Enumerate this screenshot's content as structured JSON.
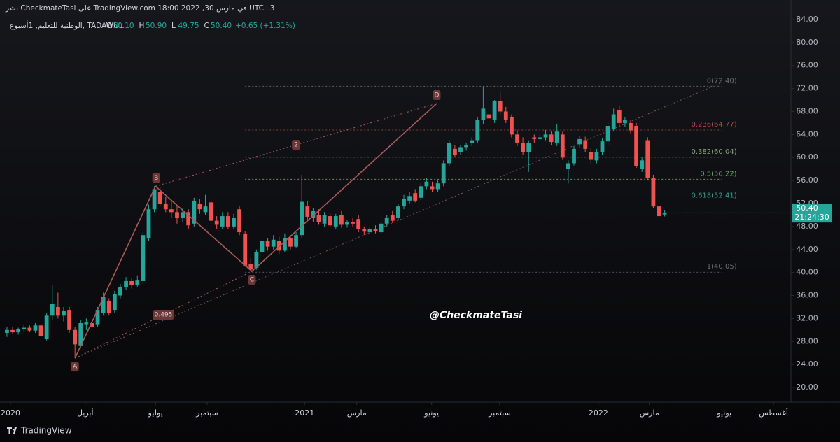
{
  "header": {
    "published": "نشر CheckmateTasi على TradingView.com في مارس 30, 2022 18:00 UTC+3",
    "symbol": "الوطنية للتعليم, 1أسبوع, TADAWUL",
    "ohlc": [
      {
        "key": "O",
        "text": "50.10"
      },
      {
        "key": "H",
        "text": "50.90"
      },
      {
        "key": "L",
        "text": "49.75"
      },
      {
        "key": "C",
        "text": "50.40"
      }
    ],
    "change": "+0.65 (+1.31%)"
  },
  "chart_data": {
    "type": "candlestick",
    "up_color": "#26a69a",
    "down_color": "#ef5350",
    "xlim": [
      -1.23,
      138.27
    ],
    "ylim": [
      17.45,
      87.4
    ],
    "xticks": [
      {
        "value": 0.62,
        "label": "2020"
      },
      {
        "value": 13.8,
        "label": "أبريل"
      },
      {
        "value": 26.2,
        "label": "يوليو"
      },
      {
        "value": 35.3,
        "label": "سبتمبر"
      },
      {
        "value": 52.5,
        "label": "2021"
      },
      {
        "value": 61.7,
        "label": "مارس"
      },
      {
        "value": 74.9,
        "label": "يونيو"
      },
      {
        "value": 86.9,
        "label": "سبتمبر"
      },
      {
        "value": 104.3,
        "label": "2022"
      },
      {
        "value": 113.3,
        "label": "مارس"
      },
      {
        "value": 126.5,
        "label": "يونيو"
      },
      {
        "value": 135.2,
        "label": "أغسطس"
      }
    ],
    "yticks": [
      {
        "value": 20,
        "label": "20.00"
      },
      {
        "value": 24,
        "label": "24.00"
      },
      {
        "value": 28,
        "label": "28.00"
      },
      {
        "value": 32,
        "label": "32.00"
      },
      {
        "value": 36,
        "label": "36.00"
      },
      {
        "value": 40,
        "label": "40.00"
      },
      {
        "value": 44,
        "label": "44.00"
      },
      {
        "value": 48,
        "label": "48.00"
      },
      {
        "value": 52,
        "label": "52.00"
      },
      {
        "value": 56,
        "label": "56.00"
      },
      {
        "value": 60,
        "label": "60.00"
      },
      {
        "value": 64,
        "label": "64.00"
      },
      {
        "value": 68,
        "label": "68.00"
      },
      {
        "value": 72,
        "label": "72.00"
      },
      {
        "value": 76,
        "label": "76.00"
      },
      {
        "value": 80,
        "label": "80.00"
      },
      {
        "value": 84,
        "label": "84.00"
      }
    ],
    "ohlc": [
      [
        29.5,
        30.5,
        28.8,
        30.0
      ],
      [
        30.0,
        30.6,
        29.4,
        29.6
      ],
      [
        29.6,
        30.4,
        29.2,
        30.2
      ],
      [
        30.2,
        31.0,
        29.8,
        30.4
      ],
      [
        30.4,
        30.8,
        29.6,
        29.9
      ],
      [
        29.9,
        31.2,
        29.5,
        30.8
      ],
      [
        30.8,
        31.0,
        28.6,
        29.0
      ],
      [
        28.4,
        33.0,
        28.2,
        32.5
      ],
      [
        32.5,
        37.8,
        31.8,
        34.5
      ],
      [
        34.0,
        36.5,
        32.0,
        32.5
      ],
      [
        32.5,
        34.0,
        31.5,
        33.3
      ],
      [
        33.5,
        34.0,
        29.5,
        30.0
      ],
      [
        30.0,
        30.5,
        25.3,
        27.5
      ],
      [
        27.2,
        31.8,
        26.8,
        31.2
      ],
      [
        31.0,
        32.0,
        30.0,
        31.3
      ],
      [
        31.2,
        31.8,
        30.0,
        30.6
      ],
      [
        31.0,
        34.0,
        30.5,
        33.5
      ],
      [
        33.0,
        36.5,
        32.5,
        35.8
      ],
      [
        35.0,
        35.5,
        32.5,
        33.0
      ],
      [
        33.5,
        36.8,
        33.0,
        36.2
      ],
      [
        36.0,
        38.0,
        35.5,
        37.5
      ],
      [
        37.5,
        39.2,
        37.0,
        38.5
      ],
      [
        38.5,
        39.0,
        37.2,
        37.8
      ],
      [
        37.8,
        39.5,
        37.5,
        38.6
      ],
      [
        38.5,
        47.0,
        38.0,
        46.5
      ],
      [
        46.0,
        51.8,
        45.5,
        51.0
      ],
      [
        51.0,
        55.0,
        50.5,
        54.5
      ],
      [
        54.0,
        54.8,
        51.5,
        52.0
      ],
      [
        52.0,
        53.2,
        50.5,
        51.0
      ],
      [
        51.0,
        52.5,
        49.5,
        50.5
      ],
      [
        50.5,
        51.5,
        48.5,
        49.5
      ],
      [
        49.5,
        51.2,
        48.8,
        50.5
      ],
      [
        50.5,
        51.0,
        47.5,
        48.2
      ],
      [
        48.5,
        53.0,
        48.0,
        52.5
      ],
      [
        52.0,
        52.8,
        50.2,
        51.0
      ],
      [
        50.5,
        53.5,
        50.0,
        51.5
      ],
      [
        52.2,
        52.8,
        48.5,
        49.0
      ],
      [
        49.0,
        49.8,
        47.5,
        48.3
      ],
      [
        48.0,
        50.5,
        47.6,
        49.8
      ],
      [
        49.8,
        50.5,
        47.5,
        48.0
      ],
      [
        48.0,
        50.2,
        47.5,
        49.5
      ],
      [
        51.0,
        51.5,
        46.5,
        47.0
      ],
      [
        46.7,
        47.2,
        41.0,
        41.2
      ],
      [
        41.5,
        42.5,
        40.2,
        40.5
      ],
      [
        40.8,
        44.0,
        40.5,
        43.5
      ],
      [
        43.5,
        46.2,
        43.0,
        45.5
      ],
      [
        45.5,
        46.0,
        43.8,
        44.5
      ],
      [
        44.5,
        46.5,
        44.0,
        45.7
      ],
      [
        45.5,
        46.2,
        43.2,
        43.8
      ],
      [
        43.8,
        46.8,
        43.5,
        46.0
      ],
      [
        46.0,
        46.5,
        44.0,
        44.5
      ],
      [
        44.5,
        47.0,
        44.2,
        46.5
      ],
      [
        46.5,
        57.0,
        46.0,
        52.3
      ],
      [
        51.5,
        52.5,
        49.2,
        49.7
      ],
      [
        49.5,
        51.2,
        48.8,
        50.7
      ],
      [
        50.0,
        51.0,
        48.3,
        48.8
      ],
      [
        48.5,
        50.5,
        48.0,
        50.0
      ],
      [
        49.8,
        50.4,
        47.8,
        48.2
      ],
      [
        48.0,
        50.2,
        47.5,
        49.8
      ],
      [
        50.0,
        50.8,
        47.8,
        48.3
      ],
      [
        48.3,
        49.2,
        47.8,
        48.8
      ],
      [
        48.8,
        49.5,
        48.0,
        48.5
      ],
      [
        49.3,
        50.0,
        47.0,
        47.5
      ],
      [
        47.5,
        48.0,
        46.5,
        47.1
      ],
      [
        47.0,
        48.0,
        46.6,
        47.5
      ],
      [
        47.5,
        48.2,
        46.8,
        47.2
      ],
      [
        47.0,
        49.0,
        46.8,
        48.5
      ],
      [
        48.5,
        50.0,
        48.0,
        49.5
      ],
      [
        50.0,
        50.8,
        48.6,
        49.0
      ],
      [
        49.5,
        52.0,
        49.2,
        51.5
      ],
      [
        51.5,
        53.5,
        51.0,
        52.8
      ],
      [
        52.5,
        54.0,
        52.0,
        53.3
      ],
      [
        53.8,
        54.5,
        52.2,
        52.5
      ],
      [
        53.0,
        55.5,
        52.6,
        55.0
      ],
      [
        55.0,
        56.5,
        54.5,
        55.8
      ],
      [
        55.0,
        55.8,
        54.0,
        54.5
      ],
      [
        54.5,
        56.0,
        54.0,
        55.5
      ],
      [
        55.5,
        59.5,
        55.0,
        59.0
      ],
      [
        59.0,
        63.0,
        58.5,
        62.5
      ],
      [
        61.5,
        62.2,
        60.0,
        60.5
      ],
      [
        61.0,
        62.2,
        60.5,
        61.8
      ],
      [
        61.8,
        62.6,
        61.2,
        62.2
      ],
      [
        62.5,
        63.5,
        62.0,
        63.0
      ],
      [
        63.0,
        67.0,
        62.5,
        66.5
      ],
      [
        66.5,
        72.4,
        65.8,
        68.5
      ],
      [
        67.5,
        68.5,
        66.0,
        66.8
      ],
      [
        66.5,
        70.0,
        66.0,
        69.8
      ],
      [
        69.8,
        71.5,
        67.5,
        68.0
      ],
      [
        68.0,
        68.8,
        66.0,
        66.5
      ],
      [
        67.0,
        67.5,
        63.5,
        64.0
      ],
      [
        64.0,
        64.8,
        62.0,
        62.5
      ],
      [
        62.5,
        63.5,
        60.5,
        61.0
      ],
      [
        61.0,
        63.0,
        57.5,
        62.5
      ],
      [
        63.5,
        64.0,
        62.5,
        63.2
      ],
      [
        63.2,
        64.2,
        62.8,
        63.5
      ],
      [
        63.5,
        64.8,
        63.0,
        64.0
      ],
      [
        64.0,
        64.6,
        62.2,
        62.7
      ],
      [
        62.5,
        65.8,
        62.0,
        64.5
      ],
      [
        64.0,
        64.5,
        59.6,
        60.0
      ],
      [
        58.0,
        59.5,
        55.5,
        59.0
      ],
      [
        59.0,
        62.0,
        58.6,
        61.5
      ],
      [
        62.3,
        63.8,
        61.8,
        63.2
      ],
      [
        63.0,
        63.6,
        61.0,
        61.5
      ],
      [
        61.0,
        61.6,
        59.0,
        59.6
      ],
      [
        59.5,
        61.5,
        59.0,
        61.0
      ],
      [
        61.0,
        63.3,
        60.5,
        62.8
      ],
      [
        62.8,
        66.0,
        62.2,
        65.5
      ],
      [
        65.0,
        68.5,
        64.6,
        67.5
      ],
      [
        68.2,
        69.0,
        65.5,
        66.0
      ],
      [
        66.0,
        67.0,
        65.3,
        66.5
      ],
      [
        66.0,
        66.5,
        64.2,
        64.7
      ],
      [
        65.5,
        66.0,
        58.2,
        58.5
      ],
      [
        58.0,
        60.0,
        57.5,
        59.5
      ],
      [
        63.0,
        63.5,
        56.0,
        56.5
      ],
      [
        56.5,
        57.0,
        51.2,
        51.5
      ],
      [
        51.5,
        53.5,
        49.5,
        49.8
      ],
      [
        50.1,
        50.9,
        49.75,
        50.4
      ]
    ],
    "fib": {
      "from": 42,
      "to": 126,
      "levels": [
        {
          "value": 72.4,
          "label": "0(72.40)",
          "color": "#6a6d78"
        },
        {
          "value": 64.77,
          "label": "0.236(64.77)",
          "color": "#b04a4a"
        },
        {
          "value": 60.04,
          "label": "0.382(60.04)",
          "color": "#8da37a"
        },
        {
          "value": 56.22,
          "label": "0.5(56.22)",
          "color": "#6faa6a"
        },
        {
          "value": 52.41,
          "label": "0.618(52.41)",
          "color": "#3f9a8e"
        },
        {
          "value": 40.05,
          "label": "1(40.05)",
          "color": "#6a6d78"
        }
      ]
    },
    "pattern": {
      "color": "#a85a5a",
      "points": [
        {
          "label": "A",
          "x": 12,
          "y": 25.1
        },
        {
          "label": "B",
          "x": 26.2,
          "y": 55.0
        },
        {
          "label": "C",
          "x": 43.2,
          "y": 40.2
        },
        {
          "label": "D",
          "x": 75.8,
          "y": 69.4
        }
      ],
      "ratios": [
        {
          "label": "0.495"
        },
        {
          "label": "2"
        }
      ]
    },
    "trendline": {
      "from": {
        "x": 12,
        "y": 25.1
      },
      "to": {
        "x": 126,
        "y": 73
      }
    },
    "price_tag": {
      "value": 50.4,
      "label": "50.40",
      "timer": "21:24:30"
    },
    "watermark": "@CheckmateTasi",
    "brand": "TradingView"
  }
}
